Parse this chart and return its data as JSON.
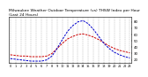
{
  "title": "Milwaukee Weather Outdoor Temperature (vs) THSW Index per Hour (Last 24 Hours)",
  "title_fontsize": 3.2,
  "background_color": "#ffffff",
  "plot_bg_color": "#ffffff",
  "grid_color": "#888888",
  "hours": [
    0,
    1,
    2,
    3,
    4,
    5,
    6,
    7,
    8,
    9,
    10,
    11,
    12,
    13,
    14,
    15,
    16,
    17,
    18,
    19,
    20,
    21,
    22,
    23
  ],
  "temp_color": "#cc0000",
  "thsw_color": "#0000cc",
  "temp_values": [
    28,
    27,
    26,
    26,
    25,
    25,
    25,
    26,
    30,
    38,
    46,
    53,
    57,
    60,
    61,
    59,
    56,
    52,
    47,
    42,
    38,
    35,
    33,
    31
  ],
  "thsw_values": [
    22,
    21,
    20,
    19,
    18,
    18,
    18,
    20,
    26,
    38,
    52,
    65,
    74,
    80,
    82,
    77,
    68,
    57,
    46,
    38,
    32,
    28,
    25,
    23
  ],
  "ylim": [
    15,
    88
  ],
  "yticks": [
    20,
    30,
    40,
    50,
    60,
    70,
    80
  ],
  "ytick_labels": [
    "20",
    "30",
    "40",
    "50",
    "60",
    "70",
    "80"
  ],
  "ytick_fontsize": 2.8,
  "xtick_fontsize": 2.5,
  "line_width": 0.7
}
